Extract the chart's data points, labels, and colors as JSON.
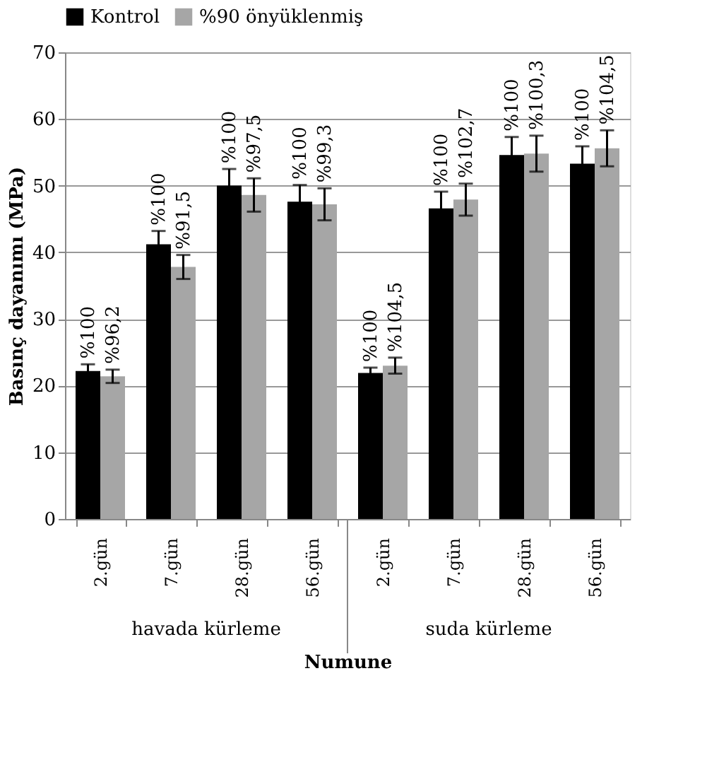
{
  "chart_data": {
    "type": "bar",
    "xlabel": "Numune",
    "ylabel": "Basınç dayanımı (MPa)",
    "categories": [
      "2.gün",
      "7.gün",
      "28.gün",
      "56.gün",
      "2.gün",
      "7.gün",
      "28.gün",
      "56.gün"
    ],
    "series": [
      {
        "name": "Kontrol",
        "color": "#000000",
        "values": [
          22.2,
          41.2,
          50.0,
          47.6,
          21.9,
          46.6,
          54.6,
          53.3
        ],
        "errors": [
          1.0,
          2.0,
          2.5,
          2.5,
          0.8,
          2.5,
          2.7,
          2.6
        ]
      },
      {
        "name": "%90 önyüklenmiş",
        "color": "#a6a6a6",
        "values": [
          21.4,
          37.8,
          48.6,
          47.2,
          23.0,
          47.9,
          54.8,
          55.6
        ],
        "errors": [
          1.0,
          1.8,
          2.5,
          2.4,
          1.2,
          2.4,
          2.7,
          2.7
        ]
      }
    ],
    "annotations": [
      "havada kürleme",
      "suda kürleme",
      "%100",
      "%96,2",
      "%100",
      "%91,5",
      "%100",
      "%97,5",
      "%100",
      "%99,3",
      "%100",
      "%104,5",
      "%100",
      "%102,7",
      "%100",
      "%100,3",
      "%100",
      "%104,5"
    ],
    "ylim": [
      0,
      70
    ],
    "yticks": [
      0,
      10,
      20,
      30,
      40,
      50,
      60,
      70
    ],
    "grid": "y",
    "legend": "top"
  }
}
